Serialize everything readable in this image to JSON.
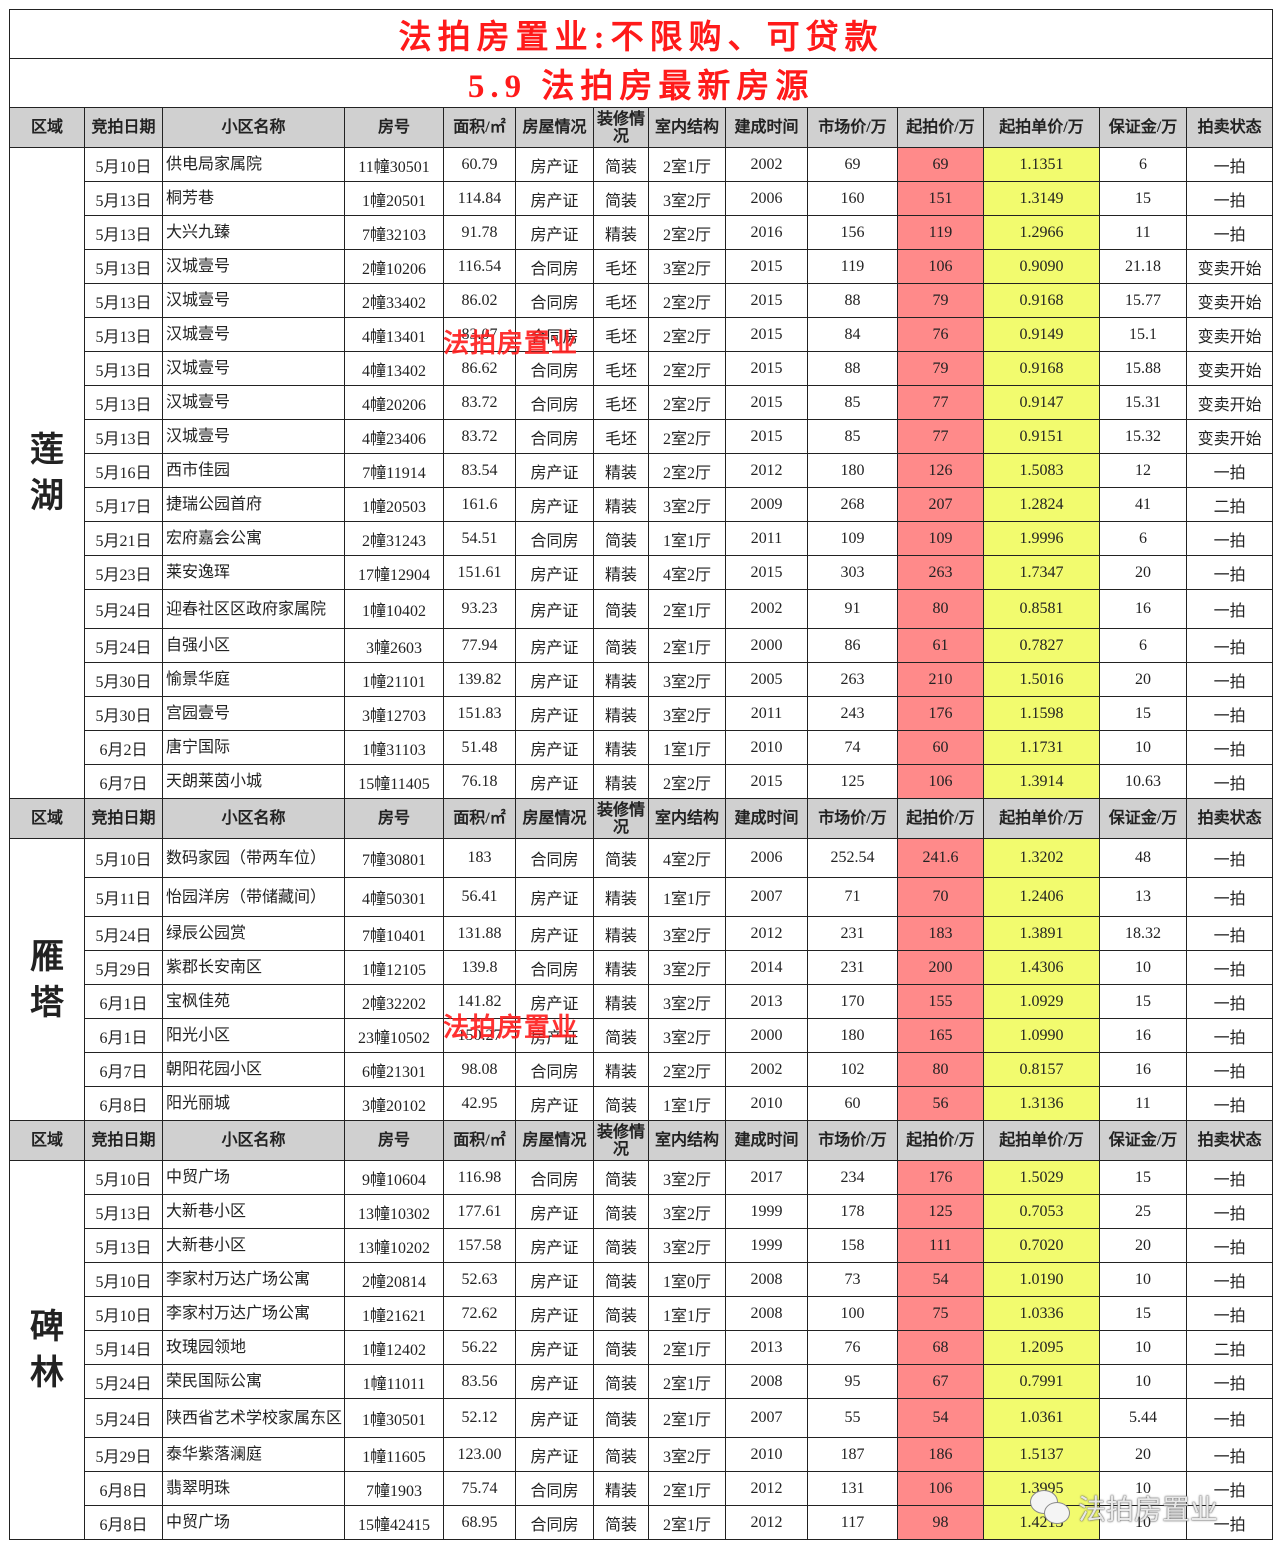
{
  "title": "法拍房置业:不限购、可贷款",
  "subtitle": "5.9   法拍房最新房源",
  "watermark": "法拍房置业",
  "colors": {
    "start_price_bg": "#ff8a8a",
    "unit_price_bg": "#f2fb6e",
    "header_bg": "#d0d0d0",
    "title": "#ff1a1a"
  },
  "headers": [
    "区域",
    "竞拍日期",
    "小区名称",
    "房号",
    "面积/㎡",
    "房屋情况",
    "装修情况",
    "室内结构",
    "建成时间",
    "市场价/万",
    "起拍价/万",
    "起拍单价/万",
    "保证金/万",
    "拍卖状态"
  ],
  "sections": [
    {
      "region": "莲湖",
      "rows": [
        [
          "5月10日",
          "供电局家属院",
          "11幢30501",
          "60.79",
          "房产证",
          "简装",
          "2室1厅",
          "2002",
          "69",
          "69",
          "1.1351",
          "6",
          "一拍"
        ],
        [
          "5月13日",
          "桐芳巷",
          "1幢20501",
          "114.84",
          "房产证",
          "简装",
          "3室2厅",
          "2006",
          "160",
          "151",
          "1.3149",
          "15",
          "一拍"
        ],
        [
          "5月13日",
          "大兴九臻",
          "7幢32103",
          "91.78",
          "房产证",
          "精装",
          "2室2厅",
          "2016",
          "156",
          "119",
          "1.2966",
          "11",
          "一拍"
        ],
        [
          "5月13日",
          "汉城壹号",
          "2幢10206",
          "116.54",
          "合同房",
          "毛坯",
          "3室2厅",
          "2015",
          "119",
          "106",
          "0.9090",
          "21.18",
          "变卖开始"
        ],
        [
          "5月13日",
          "汉城壹号",
          "2幢33402",
          "86.02",
          "合同房",
          "毛坯",
          "2室2厅",
          "2015",
          "88",
          "79",
          "0.9168",
          "15.77",
          "变卖开始"
        ],
        [
          "5月13日",
          "汉城壹号",
          "4幢13401",
          "83.07",
          "合同房",
          "毛坯",
          "2室2厅",
          "2015",
          "84",
          "76",
          "0.9149",
          "15.1",
          "变卖开始"
        ],
        [
          "5月13日",
          "汉城壹号",
          "4幢13402",
          "86.62",
          "合同房",
          "毛坯",
          "2室2厅",
          "2015",
          "88",
          "79",
          "0.9168",
          "15.88",
          "变卖开始"
        ],
        [
          "5月13日",
          "汉城壹号",
          "4幢20206",
          "83.72",
          "合同房",
          "毛坯",
          "2室2厅",
          "2015",
          "85",
          "77",
          "0.9147",
          "15.31",
          "变卖开始"
        ],
        [
          "5月13日",
          "汉城壹号",
          "4幢23406",
          "83.72",
          "合同房",
          "毛坯",
          "2室2厅",
          "2015",
          "85",
          "77",
          "0.9151",
          "15.32",
          "变卖开始"
        ],
        [
          "5月16日",
          "西市佳园",
          "7幢11914",
          "83.54",
          "房产证",
          "精装",
          "2室2厅",
          "2012",
          "180",
          "126",
          "1.5083",
          "12",
          "一拍"
        ],
        [
          "5月17日",
          "捷瑞公园首府",
          "1幢20503",
          "161.6",
          "房产证",
          "精装",
          "3室2厅",
          "2009",
          "268",
          "207",
          "1.2824",
          "41",
          "二拍"
        ],
        [
          "5月21日",
          "宏府嘉会公寓",
          "2幢31243",
          "54.51",
          "合同房",
          "简装",
          "1室1厅",
          "2011",
          "109",
          "109",
          "1.9996",
          "6",
          "一拍"
        ],
        [
          "5月23日",
          "莱安逸珲",
          "17幢12904",
          "151.61",
          "房产证",
          "精装",
          "4室2厅",
          "2015",
          "303",
          "263",
          "1.7347",
          "20",
          "一拍"
        ],
        [
          "5月24日",
          "迎春社区区政府家属院",
          "1幢10402",
          "93.23",
          "房产证",
          "简装",
          "2室1厅",
          "2002",
          "91",
          "80",
          "0.8581",
          "16",
          "一拍"
        ],
        [
          "5月24日",
          "自强小区",
          "3幢2603",
          "77.94",
          "房产证",
          "简装",
          "2室1厅",
          "2000",
          "86",
          "61",
          "0.7827",
          "6",
          "一拍"
        ],
        [
          "5月30日",
          "愉景华庭",
          "1幢21101",
          "139.82",
          "房产证",
          "精装",
          "3室2厅",
          "2005",
          "263",
          "210",
          "1.5016",
          "20",
          "一拍"
        ],
        [
          "5月30日",
          "宫园壹号",
          "3幢12703",
          "151.83",
          "房产证",
          "精装",
          "3室2厅",
          "2011",
          "243",
          "176",
          "1.1598",
          "15",
          "一拍"
        ],
        [
          "6月2日",
          "唐宁国际",
          "1幢31103",
          "51.48",
          "房产证",
          "精装",
          "1室1厅",
          "2010",
          "74",
          "60",
          "1.1731",
          "10",
          "一拍"
        ],
        [
          "6月7日",
          "天朗莱茵小城",
          "15幢11405",
          "76.18",
          "房产证",
          "精装",
          "2室2厅",
          "2015",
          "125",
          "106",
          "1.3914",
          "10.63",
          "一拍"
        ]
      ]
    },
    {
      "region": "雁塔",
      "rows": [
        [
          "5月10日",
          "数码家园（带两车位）",
          "7幢30801",
          "183",
          "合同房",
          "简装",
          "4室2厅",
          "2006",
          "252.54",
          "241.6",
          "1.3202",
          "48",
          "一拍"
        ],
        [
          "5月11日",
          "怡园洋房（带储藏间）",
          "4幢50301",
          "56.41",
          "房产证",
          "精装",
          "1室1厅",
          "2007",
          "71",
          "70",
          "1.2406",
          "13",
          "一拍"
        ],
        [
          "5月24日",
          "绿辰公园赏",
          "7幢10401",
          "131.88",
          "房产证",
          "精装",
          "3室2厅",
          "2012",
          "231",
          "183",
          "1.3891",
          "18.32",
          "一拍"
        ],
        [
          "5月29日",
          "紫郡长安南区",
          "1幢12105",
          "139.8",
          "合同房",
          "精装",
          "3室2厅",
          "2014",
          "231",
          "200",
          "1.4306",
          "10",
          "一拍"
        ],
        [
          "6月1日",
          "宝枫佳苑",
          "2幢32202",
          "141.82",
          "房产证",
          "精装",
          "3室2厅",
          "2013",
          "170",
          "155",
          "1.0929",
          "15",
          "一拍"
        ],
        [
          "6月1日",
          "阳光小区",
          "23幢10502",
          "150.27",
          "房产证",
          "简装",
          "3室2厅",
          "2000",
          "180",
          "165",
          "1.0990",
          "16",
          "一拍"
        ],
        [
          "6月7日",
          "朝阳花园小区",
          "6幢21301",
          "98.08",
          "合同房",
          "精装",
          "2室2厅",
          "2002",
          "102",
          "80",
          "0.8157",
          "16",
          "一拍"
        ],
        [
          "6月8日",
          "阳光丽城",
          "3幢20102",
          "42.95",
          "房产证",
          "简装",
          "1室1厅",
          "2010",
          "60",
          "56",
          "1.3136",
          "11",
          "一拍"
        ]
      ]
    },
    {
      "region": "碑林",
      "rows": [
        [
          "5月10日",
          "中贸广场",
          "9幢10604",
          "116.98",
          "合同房",
          "简装",
          "3室2厅",
          "2017",
          "234",
          "176",
          "1.5029",
          "15",
          "一拍"
        ],
        [
          "5月13日",
          "大新巷小区",
          "13幢10302",
          "177.61",
          "房产证",
          "简装",
          "3室2厅",
          "1999",
          "178",
          "125",
          "0.7053",
          "25",
          "一拍"
        ],
        [
          "5月13日",
          "大新巷小区",
          "13幢10202",
          "157.58",
          "房产证",
          "简装",
          "3室2厅",
          "1999",
          "158",
          "111",
          "0.7020",
          "20",
          "一拍"
        ],
        [
          "5月10日",
          "李家村万达广场公寓",
          "2幢20814",
          "52.63",
          "房产证",
          "简装",
          "1室0厅",
          "2008",
          "73",
          "54",
          "1.0190",
          "10",
          "一拍"
        ],
        [
          "5月10日",
          "李家村万达广场公寓",
          "1幢21621",
          "72.62",
          "房产证",
          "简装",
          "1室1厅",
          "2008",
          "100",
          "75",
          "1.0336",
          "15",
          "一拍"
        ],
        [
          "5月14日",
          "玫瑰园领地",
          "1幢12402",
          "56.22",
          "房产证",
          "简装",
          "2室1厅",
          "2013",
          "76",
          "68",
          "1.2095",
          "10",
          "二拍"
        ],
        [
          "5月24日",
          "荣民国际公寓",
          "1幢11011",
          "83.56",
          "房产证",
          "简装",
          "2室1厅",
          "2008",
          "95",
          "67",
          "0.7991",
          "10",
          "一拍"
        ],
        [
          "5月24日",
          "陕西省艺术学校家属东区",
          "1幢30501",
          "52.12",
          "房产证",
          "简装",
          "2室1厅",
          "2007",
          "55",
          "54",
          "1.0361",
          "5.44",
          "一拍"
        ],
        [
          "5月29日",
          "泰华紫落澜庭",
          "1幢11605",
          "123.00",
          "房产证",
          "简装",
          "3室2厅",
          "2010",
          "187",
          "186",
          "1.5137",
          "20",
          "一拍"
        ],
        [
          "6月8日",
          "翡翠明珠",
          "7幢1903",
          "75.74",
          "合同房",
          "精装",
          "2室1厅",
          "2012",
          "131",
          "106",
          "1.3995",
          "10",
          "一拍"
        ],
        [
          "6月8日",
          "中贸广场",
          "15幢42415",
          "68.95",
          "合同房",
          "简装",
          "2室1厅",
          "2012",
          "117",
          "98",
          "1.4213",
          "10",
          "一拍"
        ]
      ]
    }
  ]
}
